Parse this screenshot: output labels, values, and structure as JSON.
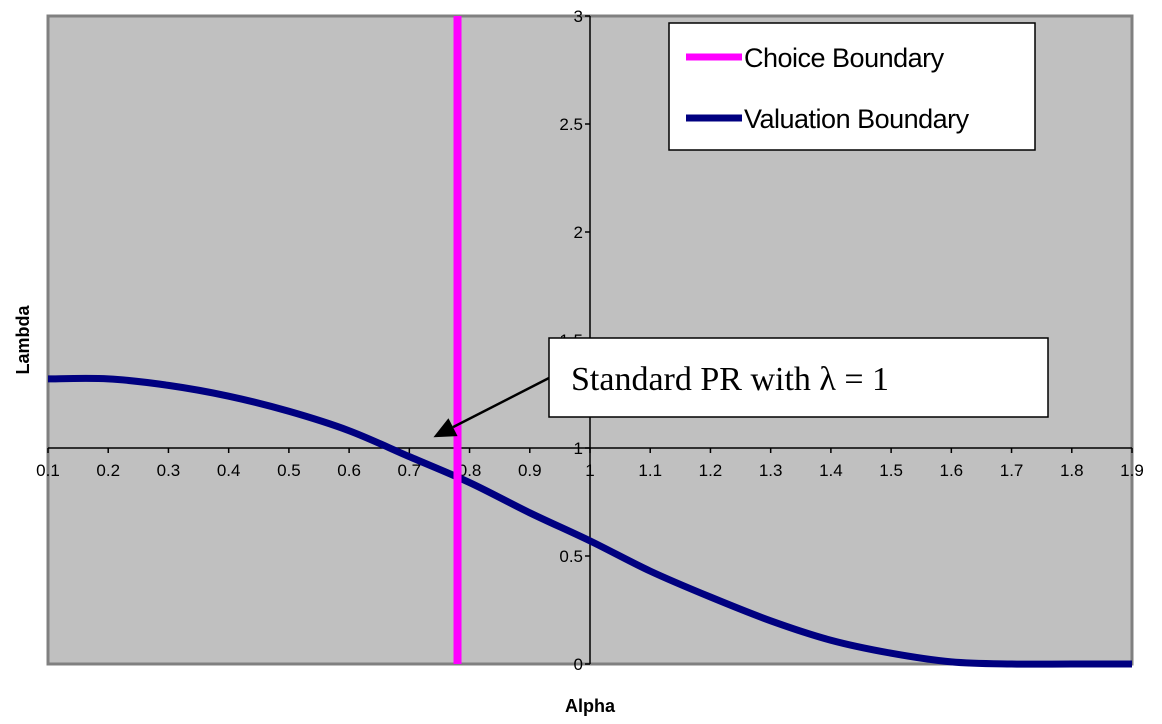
{
  "chart_data": {
    "type": "line",
    "xlabel": "Alpha",
    "ylabel": "Lambda",
    "xlim": [
      0.1,
      1.9
    ],
    "ylim": [
      0,
      3
    ],
    "x_ticks": [
      "0.1",
      "0.2",
      "0.3",
      "0.4",
      "0.5",
      "0.6",
      "0.7",
      "0.8",
      "0.9",
      "1",
      "1.1",
      "1.2",
      "1.3",
      "1.4",
      "1.5",
      "1.6",
      "1.7",
      "1.8",
      "1.9"
    ],
    "y_ticks": [
      "0",
      "0.5",
      "1",
      "1.5",
      "2",
      "2.5",
      "3"
    ],
    "x_axis_crosses_at_y": 1,
    "y_axis_crosses_at_x": 1,
    "legend_position": "top-right",
    "plot_background": "#c0c0c0",
    "series": [
      {
        "name": "Choice Boundary",
        "color": "#ff00ff",
        "x": [
          0.78,
          0.78
        ],
        "y": [
          0,
          3
        ]
      },
      {
        "name": "Valuation Boundary",
        "color": "#000080",
        "x": [
          0.1,
          0.2,
          0.3,
          0.4,
          0.5,
          0.6,
          0.7,
          0.8,
          0.9,
          1.0,
          1.1,
          1.2,
          1.3,
          1.4,
          1.5,
          1.6,
          1.7,
          1.8,
          1.9
        ],
        "y": [
          1.32,
          1.32,
          1.29,
          1.24,
          1.17,
          1.08,
          0.96,
          0.84,
          0.7,
          0.57,
          0.43,
          0.31,
          0.2,
          0.11,
          0.05,
          0.01,
          0.0,
          0.0,
          0.0
        ]
      }
    ],
    "annotation": {
      "text": "Standard PR with λ = 1",
      "arrow_target": {
        "x": 0.74,
        "y": 1.05
      }
    }
  }
}
